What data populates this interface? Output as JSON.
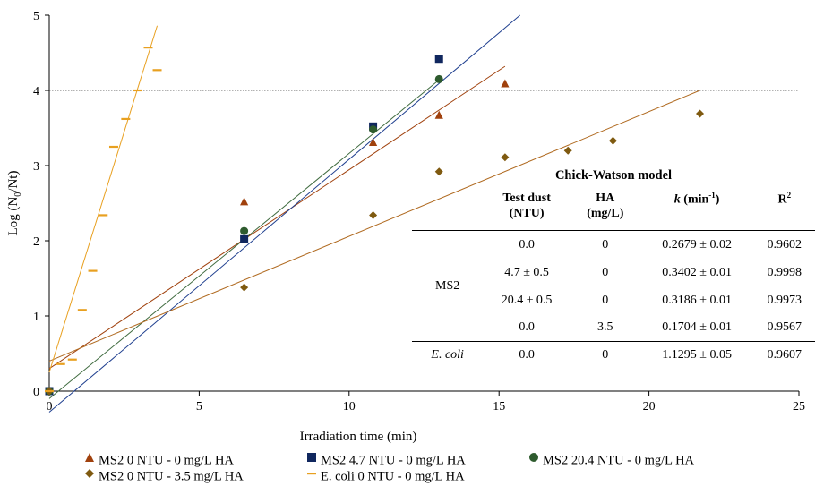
{
  "chart_data": {
    "type": "scatter",
    "title": "",
    "xlabel": "Irradiation time (min)",
    "ylabel_main": "Log (N",
    "ylabel_sub": "0",
    "ylabel_tail": "/Nt)",
    "xlim": [
      0,
      25
    ],
    "ylim": [
      0,
      5
    ],
    "xticks": [
      0,
      5,
      10,
      15,
      20,
      25
    ],
    "yticks": [
      0,
      1,
      2,
      3,
      4,
      5
    ],
    "grid": false,
    "reference_line_y": 4,
    "legend_position": "bottom",
    "series": [
      {
        "name": "MS2 0 NTU - 0 mg/L HA",
        "marker": "triangle",
        "color": "#a0410d",
        "x": [
          0,
          6.5,
          10.8,
          13,
          15.2
        ],
        "y": [
          0,
          2.52,
          3.31,
          3.67,
          4.09
        ]
      },
      {
        "name": "MS2 4.7 NTU - 0 mg/L HA",
        "marker": "square",
        "color": "#10275e",
        "x": [
          0,
          6.5,
          10.8,
          13
        ],
        "y": [
          0,
          2.02,
          3.52,
          4.42
        ]
      },
      {
        "name": "MS2 20.4 NTU - 0 mg/L HA",
        "marker": "circle",
        "color": "#2e5b2e",
        "x": [
          0,
          6.5,
          10.8,
          13
        ],
        "y": [
          0,
          2.13,
          3.48,
          4.15
        ]
      },
      {
        "name": "MS2 0 NTU - 3.5 mg/L HA",
        "marker": "diamond",
        "color": "#7f5a10",
        "x": [
          0,
          6.5,
          10.8,
          13,
          15.2,
          17.3,
          18.8,
          21.7
        ],
        "y": [
          0,
          1.38,
          2.34,
          2.92,
          3.11,
          3.2,
          3.33,
          3.69
        ]
      },
      {
        "name": "E. coli 0 NTU - 0 mg/L HA",
        "marker": "dash",
        "color": "#e8a020",
        "x": [
          0,
          0.38,
          0.77,
          1.1,
          1.45,
          1.8,
          2.15,
          2.55,
          2.95,
          3.3,
          3.6
        ],
        "y": [
          0,
          0.36,
          0.42,
          1.08,
          1.6,
          2.34,
          3.25,
          3.62,
          4.0,
          4.57,
          4.27
        ]
      }
    ],
    "fit_lines": [
      {
        "color": "#a0410d",
        "x0": 0,
        "y0": 0.3,
        "x1": 15.2,
        "y1": 4.32
      },
      {
        "color": "#1f3f8f",
        "x0": 0,
        "y0": -0.28,
        "x1": 15.7,
        "y1": 5.0
      },
      {
        "color": "#3f6b3f",
        "x0": 0,
        "y0": -0.1,
        "x1": 13,
        "y1": 4.14
      },
      {
        "color": "#b06a20",
        "x0": 0,
        "y0": 0.4,
        "x1": 21.7,
        "y1": 4.0
      },
      {
        "color": "#e8a020",
        "x0": 0,
        "y0": 0.25,
        "x1": 3.6,
        "y1": 4.86
      }
    ]
  },
  "table": {
    "title": "Chick-Watson model",
    "headers": {
      "test_dust": "Test dust",
      "test_dust_unit": "(NTU)",
      "ha": "HA",
      "ha_unit": "(mg/L)",
      "k": "k",
      "k_unit": " (min",
      "k_exp": "-1",
      "k_close": ")",
      "r2": "R",
      "r2_exp": "2"
    },
    "group_ms2": "MS2",
    "group_ecoli": "E. coli",
    "rows": [
      {
        "dust": "0.0",
        "ha": "0",
        "k": "0.2679 ± 0.02",
        "r2": "0.9602"
      },
      {
        "dust": "4.7 ± 0.5",
        "ha": "0",
        "k": "0.3402 ± 0.01",
        "r2": "0.9998"
      },
      {
        "dust": "20.4 ± 0.5",
        "ha": "0",
        "k": "0.3186 ± 0.01",
        "r2": "0.9973"
      },
      {
        "dust": "0.0",
        "ha": "3.5",
        "k": "0.1704 ± 0.01",
        "r2": "0.9567"
      },
      {
        "dust": "0.0",
        "ha": "0",
        "k": "1.1295 ± 0.05",
        "r2": "0.9607"
      }
    ]
  }
}
